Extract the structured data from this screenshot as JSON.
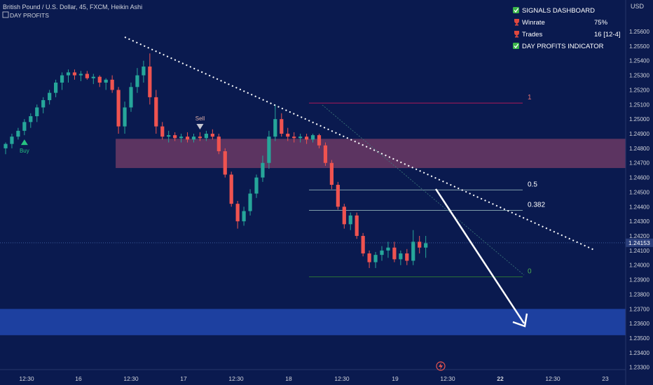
{
  "header": {
    "title": "British Pound / U.S. Dollar, 45, FXCM, Heikin Ashi",
    "subtitle": "DAY PROFITS"
  },
  "dashboard": {
    "title": "SIGNALS DASHBOARD",
    "rows": [
      {
        "label": "Winrate",
        "value": "75%"
      },
      {
        "label": "Trades",
        "value": "16 [12-4]"
      }
    ],
    "indicator": "DAY PROFITS INDICATOR"
  },
  "colors": {
    "background": "#0a1a4f",
    "bull": "#26a69a",
    "bear": "#ef5350",
    "supply_zone": "#6b3a64",
    "demand_zone": "#1f45a8",
    "axis_bg": "#0b1a4e",
    "price_tag": "#2a3e7a"
  },
  "icons": {
    "check": "check-icon",
    "trophy": "trophy-icon",
    "flash": "flash-icon"
  },
  "chart_data": {
    "type": "candlestick",
    "y_axis": {
      "label": "USD",
      "ylim": [
        1.2327,
        1.2572
      ],
      "ticks": [
        "1.25600",
        "1.25500",
        "1.25400",
        "1.25300",
        "1.25200",
        "1.25100",
        "1.25000",
        "1.24900",
        "1.24800",
        "1.24700",
        "1.24600",
        "1.24500",
        "1.24400",
        "1.24300",
        "1.24200",
        "1.24100",
        "1.24000",
        "1.23900",
        "1.23800",
        "1.23700",
        "1.23600",
        "1.23500",
        "1.23400",
        "1.23300"
      ],
      "current_price": "1.24153"
    },
    "x_axis": {
      "ticks": [
        "12:30",
        "16",
        "12:30",
        "17",
        "12:30",
        "18",
        "12:30",
        "19",
        "12:30",
        "22",
        "12:30",
        "23"
      ]
    },
    "candles": [
      {
        "o": 1.248,
        "h": 1.2484,
        "l": 1.2476,
        "c": 1.2483
      },
      {
        "o": 1.2483,
        "h": 1.249,
        "l": 1.248,
        "c": 1.2488
      },
      {
        "o": 1.2488,
        "h": 1.2494,
        "l": 1.2486,
        "c": 1.2492
      },
      {
        "o": 1.2492,
        "h": 1.25,
        "l": 1.2489,
        "c": 1.2498
      },
      {
        "o": 1.2498,
        "h": 1.2504,
        "l": 1.2494,
        "c": 1.2502
      },
      {
        "o": 1.2502,
        "h": 1.251,
        "l": 1.2498,
        "c": 1.2508
      },
      {
        "o": 1.2508,
        "h": 1.2515,
        "l": 1.2504,
        "c": 1.2513
      },
      {
        "o": 1.2513,
        "h": 1.252,
        "l": 1.251,
        "c": 1.2518
      },
      {
        "o": 1.2518,
        "h": 1.2527,
        "l": 1.2515,
        "c": 1.2525
      },
      {
        "o": 1.2525,
        "h": 1.2532,
        "l": 1.252,
        "c": 1.253
      },
      {
        "o": 1.253,
        "h": 1.2534,
        "l": 1.2525,
        "c": 1.2532
      },
      {
        "o": 1.2532,
        "h": 1.2534,
        "l": 1.2527,
        "c": 1.253
      },
      {
        "o": 1.253,
        "h": 1.2533,
        "l": 1.2526,
        "c": 1.2531
      },
      {
        "o": 1.2531,
        "h": 1.2533,
        "l": 1.2527,
        "c": 1.2528
      },
      {
        "o": 1.2528,
        "h": 1.2531,
        "l": 1.2524,
        "c": 1.2529
      },
      {
        "o": 1.2529,
        "h": 1.253,
        "l": 1.2522,
        "c": 1.2525
      },
      {
        "o": 1.2525,
        "h": 1.2528,
        "l": 1.252,
        "c": 1.2527
      },
      {
        "o": 1.2527,
        "h": 1.253,
        "l": 1.2518,
        "c": 1.252
      },
      {
        "o": 1.252,
        "h": 1.2522,
        "l": 1.249,
        "c": 1.2495
      },
      {
        "o": 1.2495,
        "h": 1.2512,
        "l": 1.249,
        "c": 1.2508
      },
      {
        "o": 1.2508,
        "h": 1.2525,
        "l": 1.2505,
        "c": 1.2522
      },
      {
        "o": 1.2522,
        "h": 1.2535,
        "l": 1.2518,
        "c": 1.253
      },
      {
        "o": 1.253,
        "h": 1.254,
        "l": 1.2525,
        "c": 1.2536
      },
      {
        "o": 1.2536,
        "h": 1.2545,
        "l": 1.251,
        "c": 1.2515
      },
      {
        "o": 1.2515,
        "h": 1.252,
        "l": 1.249,
        "c": 1.2495
      },
      {
        "o": 1.2495,
        "h": 1.2498,
        "l": 1.2486,
        "c": 1.2488
      },
      {
        "o": 1.2488,
        "h": 1.2492,
        "l": 1.2484,
        "c": 1.2489
      },
      {
        "o": 1.2489,
        "h": 1.2491,
        "l": 1.2485,
        "c": 1.2487
      },
      {
        "o": 1.2487,
        "h": 1.249,
        "l": 1.2484,
        "c": 1.2488
      },
      {
        "o": 1.2488,
        "h": 1.2491,
        "l": 1.2484,
        "c": 1.2486
      },
      {
        "o": 1.2486,
        "h": 1.249,
        "l": 1.2484,
        "c": 1.2488
      },
      {
        "o": 1.2488,
        "h": 1.2491,
        "l": 1.2485,
        "c": 1.2487
      },
      {
        "o": 1.2487,
        "h": 1.2492,
        "l": 1.2485,
        "c": 1.249
      },
      {
        "o": 1.249,
        "h": 1.2493,
        "l": 1.2486,
        "c": 1.2488
      },
      {
        "o": 1.2488,
        "h": 1.249,
        "l": 1.2476,
        "c": 1.2478
      },
      {
        "o": 1.2478,
        "h": 1.248,
        "l": 1.246,
        "c": 1.2462
      },
      {
        "o": 1.2462,
        "h": 1.2464,
        "l": 1.244,
        "c": 1.2442
      },
      {
        "o": 1.2442,
        "h": 1.2444,
        "l": 1.2425,
        "c": 1.243
      },
      {
        "o": 1.243,
        "h": 1.244,
        "l": 1.2427,
        "c": 1.2437
      },
      {
        "o": 1.2437,
        "h": 1.2452,
        "l": 1.2434,
        "c": 1.2449
      },
      {
        "o": 1.2449,
        "h": 1.2462,
        "l": 1.2446,
        "c": 1.246
      },
      {
        "o": 1.246,
        "h": 1.2475,
        "l": 1.2457,
        "c": 1.247
      },
      {
        "o": 1.247,
        "h": 1.2492,
        "l": 1.2466,
        "c": 1.2488
      },
      {
        "o": 1.2488,
        "h": 1.251,
        "l": 1.2485,
        "c": 1.25
      },
      {
        "o": 1.25,
        "h": 1.2504,
        "l": 1.2488,
        "c": 1.249
      },
      {
        "o": 1.249,
        "h": 1.2494,
        "l": 1.2485,
        "c": 1.2488
      },
      {
        "o": 1.2488,
        "h": 1.2491,
        "l": 1.2484,
        "c": 1.2487
      },
      {
        "o": 1.2487,
        "h": 1.249,
        "l": 1.2484,
        "c": 1.2488
      },
      {
        "o": 1.2488,
        "h": 1.249,
        "l": 1.2483,
        "c": 1.2486
      },
      {
        "o": 1.2486,
        "h": 1.249,
        "l": 1.2484,
        "c": 1.2489
      },
      {
        "o": 1.2489,
        "h": 1.249,
        "l": 1.248,
        "c": 1.2482
      },
      {
        "o": 1.2482,
        "h": 1.2484,
        "l": 1.2468,
        "c": 1.247
      },
      {
        "o": 1.247,
        "h": 1.2472,
        "l": 1.2452,
        "c": 1.2455
      },
      {
        "o": 1.2455,
        "h": 1.2457,
        "l": 1.2438,
        "c": 1.244
      },
      {
        "o": 1.244,
        "h": 1.2442,
        "l": 1.2425,
        "c": 1.2428
      },
      {
        "o": 1.2428,
        "h": 1.2436,
        "l": 1.2424,
        "c": 1.2434
      },
      {
        "o": 1.2434,
        "h": 1.2436,
        "l": 1.2418,
        "c": 1.242
      },
      {
        "o": 1.242,
        "h": 1.2422,
        "l": 1.2406,
        "c": 1.2408
      },
      {
        "o": 1.2408,
        "h": 1.241,
        "l": 1.2398,
        "c": 1.2402
      },
      {
        "o": 1.2402,
        "h": 1.2409,
        "l": 1.2398,
        "c": 1.2407
      },
      {
        "o": 1.2407,
        "h": 1.2413,
        "l": 1.2403,
        "c": 1.241
      },
      {
        "o": 1.241,
        "h": 1.2416,
        "l": 1.2405,
        "c": 1.2412
      },
      {
        "o": 1.2412,
        "h": 1.2416,
        "l": 1.2402,
        "c": 1.2404
      },
      {
        "o": 1.2404,
        "h": 1.241,
        "l": 1.24,
        "c": 1.2408
      },
      {
        "o": 1.2408,
        "h": 1.2411,
        "l": 1.24,
        "c": 1.2403
      },
      {
        "o": 1.2403,
        "h": 1.2424,
        "l": 1.24,
        "c": 1.2416
      },
      {
        "o": 1.2416,
        "h": 1.242,
        "l": 1.2408,
        "c": 1.2412
      },
      {
        "o": 1.2412,
        "h": 1.242,
        "l": 1.2405,
        "c": 1.2415
      }
    ],
    "zones": [
      {
        "name": "supply-zone",
        "top": 1.24865,
        "bottom": 1.24665,
        "from_index": 18
      },
      {
        "name": "demand-zone",
        "top": 1.237,
        "bottom": 1.2352,
        "from_index": 0
      }
    ],
    "fibonacci": [
      {
        "label": "1",
        "price": 1.2511
      },
      {
        "label": "0.5",
        "price": 1.24515
      },
      {
        "label": "0.382",
        "price": 1.24375
      },
      {
        "label": "0",
        "price": 1.2392
      }
    ],
    "signals": [
      {
        "label": "Buy",
        "type": "buy",
        "index": 3
      },
      {
        "label": "Sell",
        "type": "sell",
        "index": 31
      }
    ]
  }
}
